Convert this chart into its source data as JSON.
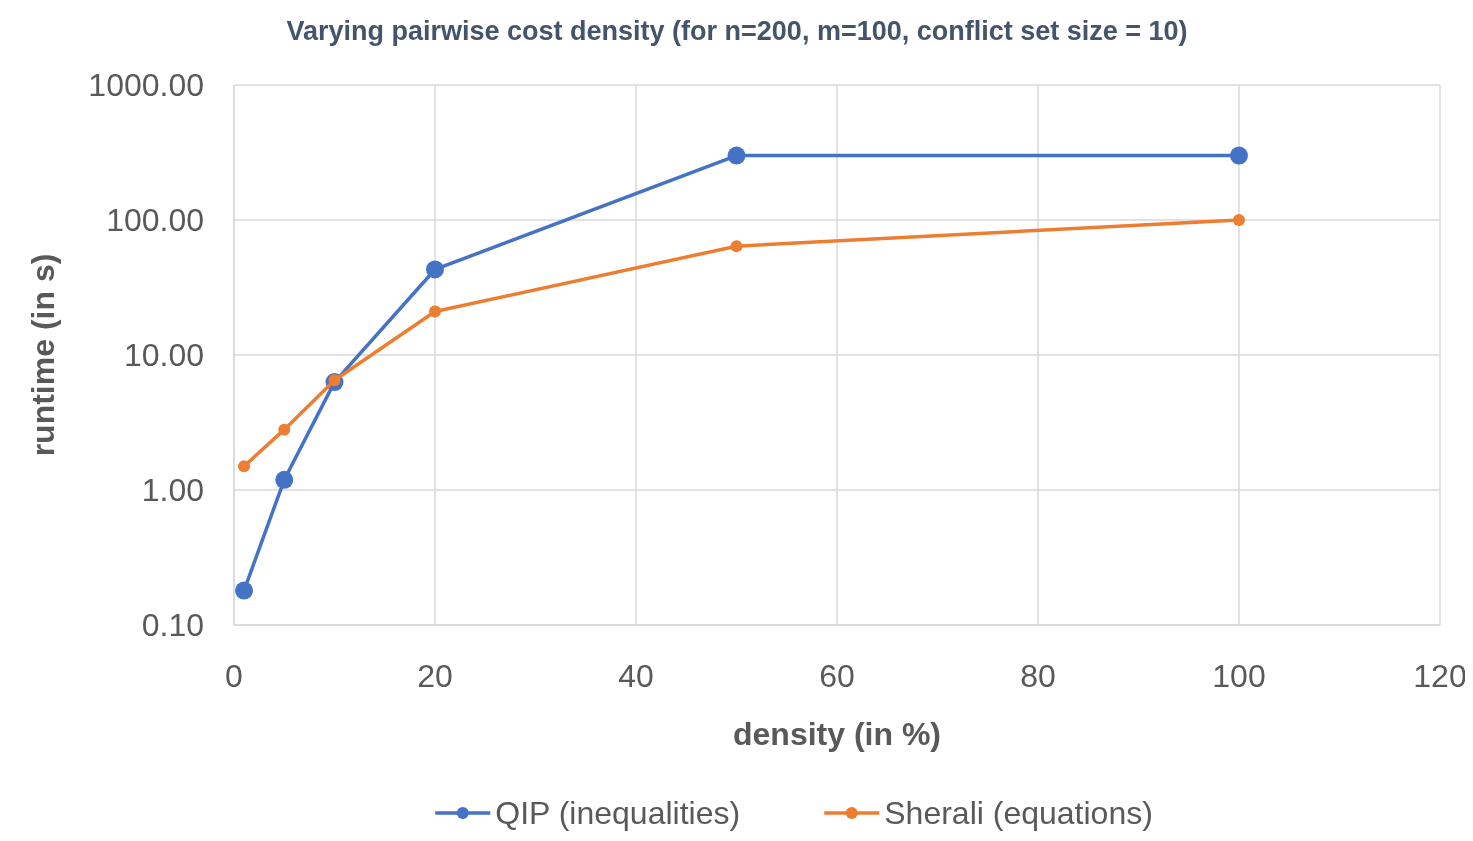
{
  "chart_data": {
    "type": "line",
    "title": "Varying pairwise cost density (for n=200, m=100, conflict set size = 10)",
    "xlabel": "density (in %)",
    "ylabel": "runtime (in s)",
    "x": [
      1,
      5,
      10,
      20,
      50,
      100
    ],
    "series": [
      {
        "name": "QIP (inequalities)",
        "color": "#4472c4",
        "values": [
          0.18,
          1.19,
          6.3,
          43,
          300,
          300
        ]
      },
      {
        "name": "Sherali (equations)",
        "color": "#ed7d31",
        "values": [
          1.5,
          2.8,
          6.5,
          21,
          64,
          100
        ]
      }
    ],
    "log": "y",
    "xlim": [
      0,
      120
    ],
    "xticks": [
      0,
      20,
      40,
      60,
      80,
      100,
      120
    ],
    "ylim": [
      0.1,
      1000
    ],
    "yticks": [
      {
        "value": 0.1,
        "label": "0.10"
      },
      {
        "value": 1,
        "label": "1.00"
      },
      {
        "value": 10,
        "label": "10.00"
      },
      {
        "value": 100,
        "label": "100.00"
      },
      {
        "value": 1000,
        "label": "1000.00"
      }
    ],
    "grid": true,
    "legend": "bottom",
    "marker": "circle",
    "line_style": "solid"
  }
}
